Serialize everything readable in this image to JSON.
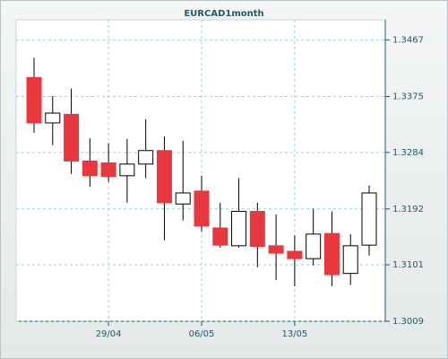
{
  "chart_data": {
    "type": "candlestick",
    "title": "EURCAD1month",
    "categories": [
      null,
      null,
      null,
      null,
      "29/04",
      null,
      null,
      null,
      null,
      "06/05",
      null,
      null,
      null,
      null,
      "13/05",
      null,
      null,
      null,
      null
    ],
    "open": [
      1.3406,
      1.3332,
      1.3346,
      1.327,
      1.3267,
      1.3246,
      1.3265,
      1.3287,
      1.32,
      1.3221,
      1.3161,
      1.3132,
      1.3188,
      1.3132,
      1.3123,
      1.3111,
      1.3152,
      1.3087,
      1.3133
    ],
    "high": [
      1.3438,
      1.3376,
      1.3388,
      1.3307,
      1.3299,
      1.3306,
      1.3338,
      1.331,
      1.3303,
      1.3246,
      1.3202,
      1.3242,
      1.3202,
      1.3183,
      1.3149,
      1.3192,
      1.3188,
      1.3151,
      1.323
    ],
    "low": [
      1.3316,
      1.3296,
      1.3249,
      1.3228,
      1.3236,
      1.3202,
      1.3242,
      1.3141,
      1.3173,
      1.3155,
      1.3129,
      1.3129,
      1.3097,
      1.3076,
      1.3066,
      1.31,
      1.3066,
      1.3068,
      1.3116
    ],
    "close": [
      1.3332,
      1.3348,
      1.327,
      1.3246,
      1.3245,
      1.3265,
      1.3287,
      1.3202,
      1.3218,
      1.3164,
      1.3133,
      1.3188,
      1.3131,
      1.312,
      1.3111,
      1.3151,
      1.3085,
      1.3132,
      1.3218
    ],
    "up_color": "#ffffff",
    "down_color": "#e8383d",
    "ylim": [
      1.3009,
      1.35
    ],
    "yticks": [
      1.3009,
      1.3101,
      1.3192,
      1.3284,
      1.3375,
      1.3467
    ],
    "grid": true
  }
}
